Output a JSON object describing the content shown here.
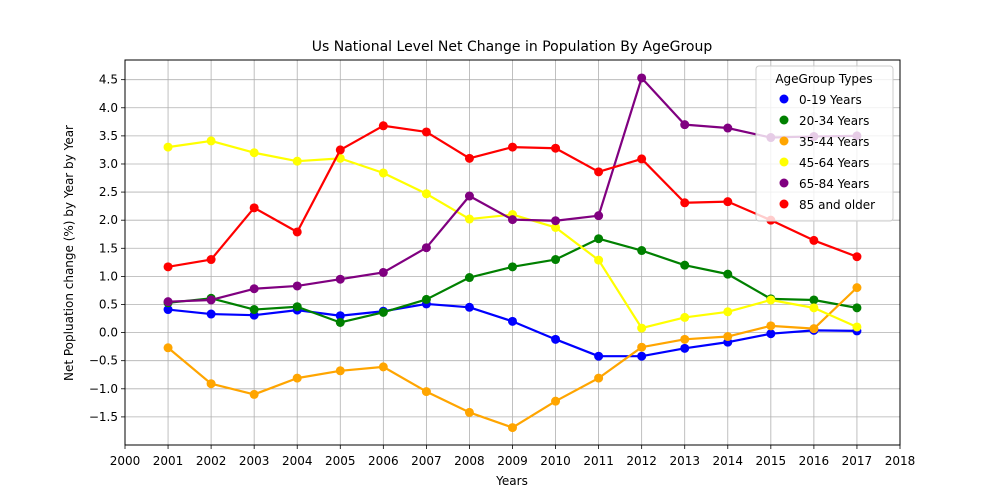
{
  "chart_data": {
    "type": "line",
    "title": "Us National Level Net Change in Population By AgeGroup",
    "xlabel": "Years",
    "ylabel": "Net Popluation change (%) by Year by Year",
    "xlim": [
      2000,
      2018
    ],
    "ylim": [
      -2.0,
      4.85
    ],
    "xticks": [
      2000,
      2001,
      2002,
      2003,
      2004,
      2005,
      2006,
      2007,
      2008,
      2009,
      2010,
      2011,
      2012,
      2013,
      2014,
      2015,
      2016,
      2017,
      2018
    ],
    "yticks": [
      -1.5,
      -1.0,
      -0.5,
      0.0,
      0.5,
      1.0,
      1.5,
      2.0,
      2.5,
      3.0,
      3.5,
      4.0,
      4.5
    ],
    "yticklabels": [
      "−1.5",
      "−1.0",
      "−0.5",
      "0.0",
      "0.5",
      "1.0",
      "1.5",
      "2.0",
      "2.5",
      "3.0",
      "3.5",
      "4.0",
      "4.5"
    ],
    "grid": true,
    "legend": {
      "title": "AgeGroup Types",
      "position": "top-right"
    },
    "x": [
      2001,
      2002,
      2003,
      2004,
      2005,
      2006,
      2007,
      2008,
      2009,
      2010,
      2011,
      2012,
      2013,
      2014,
      2015,
      2016,
      2017
    ],
    "series": [
      {
        "name": "0-19 Years",
        "color": "#0000ff",
        "values": [
          0.41,
          0.33,
          0.31,
          0.4,
          0.3,
          0.38,
          0.51,
          0.45,
          0.2,
          -0.12,
          -0.42,
          -0.42,
          -0.28,
          -0.17,
          -0.02,
          0.04,
          0.03
        ]
      },
      {
        "name": "20-34 Years",
        "color": "#008000",
        "values": [
          0.53,
          0.61,
          0.41,
          0.46,
          0.18,
          0.36,
          0.59,
          0.98,
          1.17,
          1.3,
          1.67,
          1.46,
          1.2,
          1.04,
          0.6,
          0.58,
          0.44
        ]
      },
      {
        "name": "35-44 Years",
        "color": "#ffa500",
        "values": [
          -0.27,
          -0.91,
          -1.1,
          -0.81,
          -0.68,
          -0.61,
          -1.05,
          -1.42,
          -1.69,
          -1.22,
          -0.81,
          -0.26,
          -0.12,
          -0.07,
          0.12,
          0.07,
          0.8
        ]
      },
      {
        "name": "45-64 Years",
        "color": "#ffff00",
        "values": [
          3.3,
          3.41,
          3.2,
          3.05,
          3.1,
          2.84,
          2.47,
          2.02,
          2.1,
          1.87,
          1.29,
          0.08,
          0.27,
          0.37,
          0.58,
          0.44,
          0.1
        ]
      },
      {
        "name": "65-84 Years",
        "color": "#800080",
        "values": [
          0.55,
          0.58,
          0.78,
          0.83,
          0.95,
          1.07,
          1.51,
          2.43,
          2.01,
          1.99,
          2.08,
          4.53,
          3.7,
          3.64,
          3.47,
          3.49,
          3.5
        ]
      },
      {
        "name": "85 and older",
        "color": "#ff0000",
        "values": [
          1.17,
          1.3,
          2.22,
          1.79,
          3.25,
          3.68,
          3.57,
          3.1,
          3.3,
          3.28,
          2.86,
          3.09,
          2.31,
          2.33,
          2.0,
          1.64,
          1.35
        ]
      }
    ]
  }
}
